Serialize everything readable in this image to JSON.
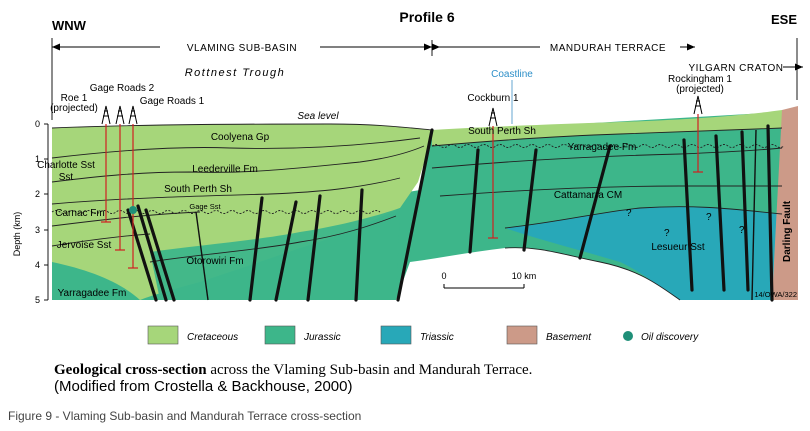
{
  "header": {
    "title": "Profile 6",
    "left_direction": "WNW",
    "right_direction": "ESE",
    "regions": [
      "VLAMING SUB-BASIN",
      "MANDURAH TERRACE",
      "YILGARN CRATON"
    ],
    "sub_region": "Rottnest Trough",
    "coastline_label": "Coastline",
    "sea_level_label": "Sea level"
  },
  "axis": {
    "label": "Depth (km)",
    "ticks": [
      "0",
      "1",
      "2",
      "3",
      "4",
      "5"
    ]
  },
  "wells": [
    {
      "name": "Roe 1",
      "note": "(projected)"
    },
    {
      "name": "Gage Roads 2",
      "note": ""
    },
    {
      "name": "Gage Roads 1",
      "note": ""
    },
    {
      "name": "Cockburn 1",
      "note": ""
    },
    {
      "name": "Rockingham 1",
      "note": "(projected)"
    }
  ],
  "formations": [
    "Coolyena Gp",
    "Leederville Fm",
    "South Perth Sh",
    "Gage Sst",
    "Charlotte Sst",
    "Carnac Fm",
    "Jervoise Sst",
    "Otorowiri Fm",
    "Yarragadee Fm",
    "South Perth Sh",
    "Yarragadee Fm",
    "Cattamarra CM",
    "Lesueur Sst",
    "Darling Fault"
  ],
  "question_marks": [
    "?",
    "?",
    "?",
    "?"
  ],
  "scale": {
    "start": "0",
    "end": "10 km"
  },
  "reference_code": "14/OWA/322",
  "legend": [
    {
      "label": "Cretaceous",
      "color": "#a6d67a"
    },
    {
      "label": "Jurassic",
      "color": "#3db68a"
    },
    {
      "label": "Triassic",
      "color": "#28a8b8"
    },
    {
      "label": "Basement",
      "color": "#cc9a88"
    },
    {
      "label": "Oil discovery",
      "color": "#1f8f78"
    }
  ],
  "caption": {
    "bold": "Geological cross-section",
    "rest": " across the Vlaming Sub-basin and Mandurah Terrace.",
    "line2": "(Modified from Crostella & Backhouse, 2000)"
  },
  "figure_label": "Figure 9 - Vlaming Sub-basin and Mandurah Terrace cross-section"
}
